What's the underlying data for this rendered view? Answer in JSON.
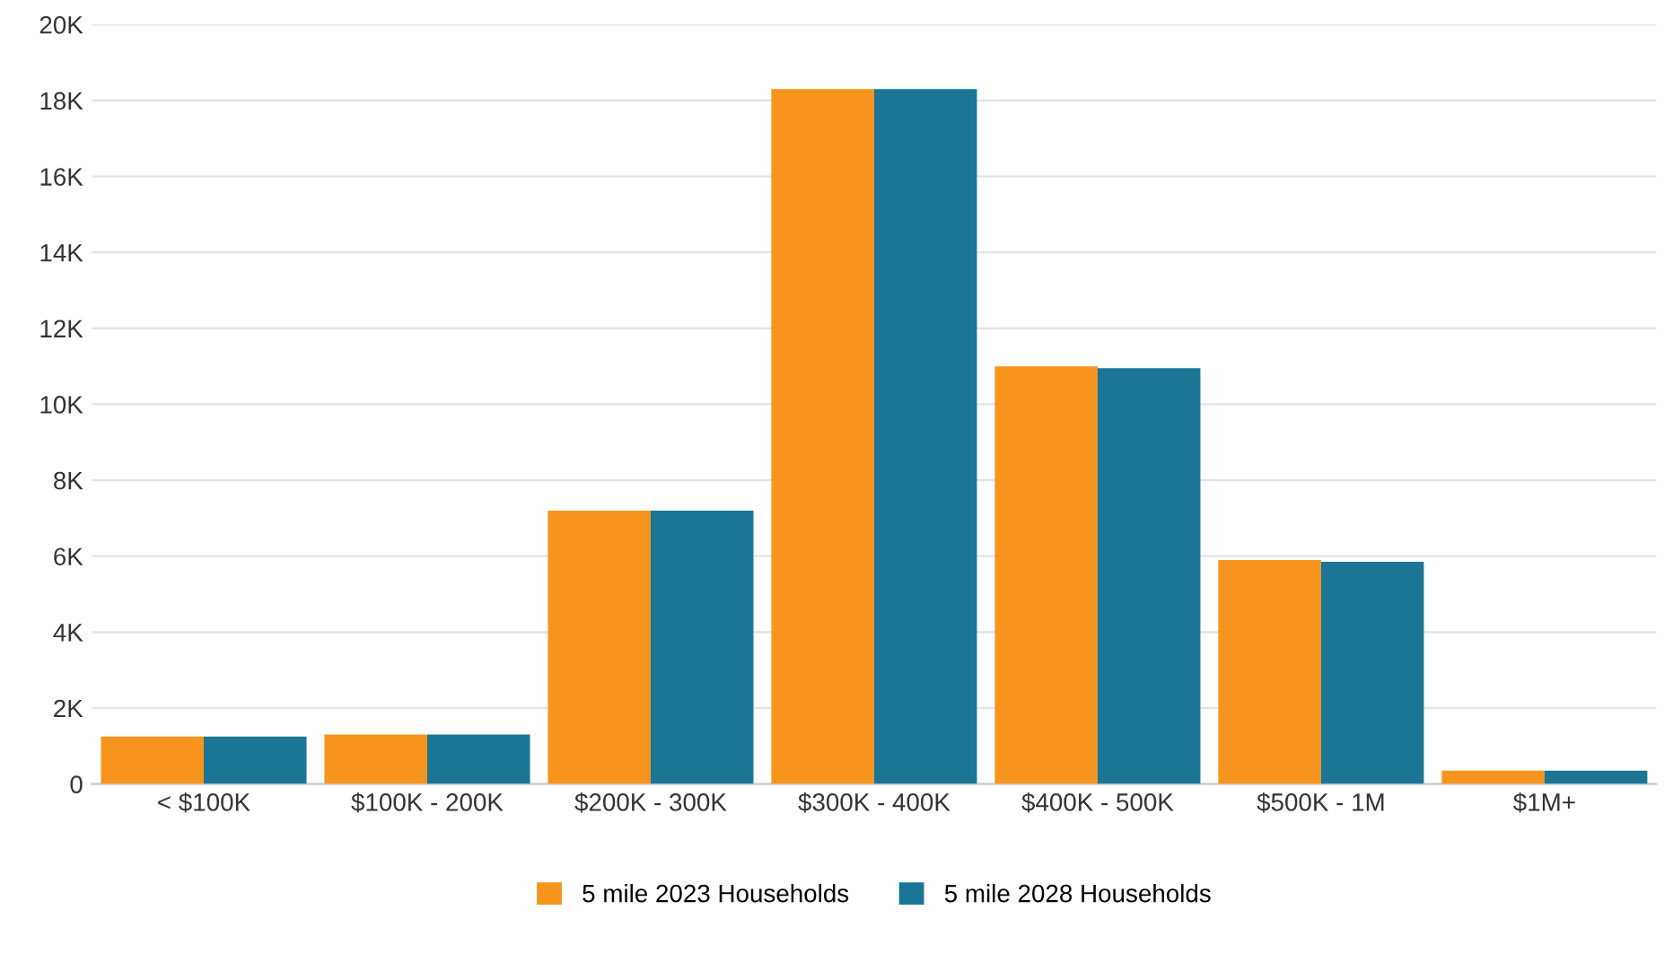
{
  "chart_data": {
    "type": "bar",
    "categories": [
      "< $100K",
      "$100K - 200K",
      "$200K - 300K",
      "$300K - 400K",
      "$400K - 500K",
      "$500K - 1M",
      "$1M+"
    ],
    "series": [
      {
        "name": "5 mile 2023 Households",
        "color": "#f7941d",
        "values": [
          1.25,
          1.3,
          7.2,
          18.3,
          11.0,
          5.9,
          0.35
        ]
      },
      {
        "name": "5 mile 2028 Households",
        "color": "#1b7595",
        "values": [
          1.25,
          1.3,
          7.2,
          18.3,
          10.95,
          5.85,
          0.35
        ]
      }
    ],
    "ylim": [
      0,
      20
    ],
    "yticks": [
      0,
      {
        "value": 2,
        "label": "2K"
      },
      {
        "value": 4,
        "label": "4K"
      },
      {
        "value": 6,
        "label": "6K"
      },
      {
        "value": 8,
        "label": "8K"
      },
      {
        "value": 10,
        "label": "10K"
      },
      {
        "value": 12,
        "label": "12K"
      },
      {
        "value": 14,
        "label": "14K"
      },
      {
        "value": 16,
        "label": "16K"
      },
      {
        "value": 18,
        "label": "18K"
      },
      {
        "value": 20,
        "label": "20K"
      }
    ],
    "grid": "y",
    "legend": "bottom"
  }
}
